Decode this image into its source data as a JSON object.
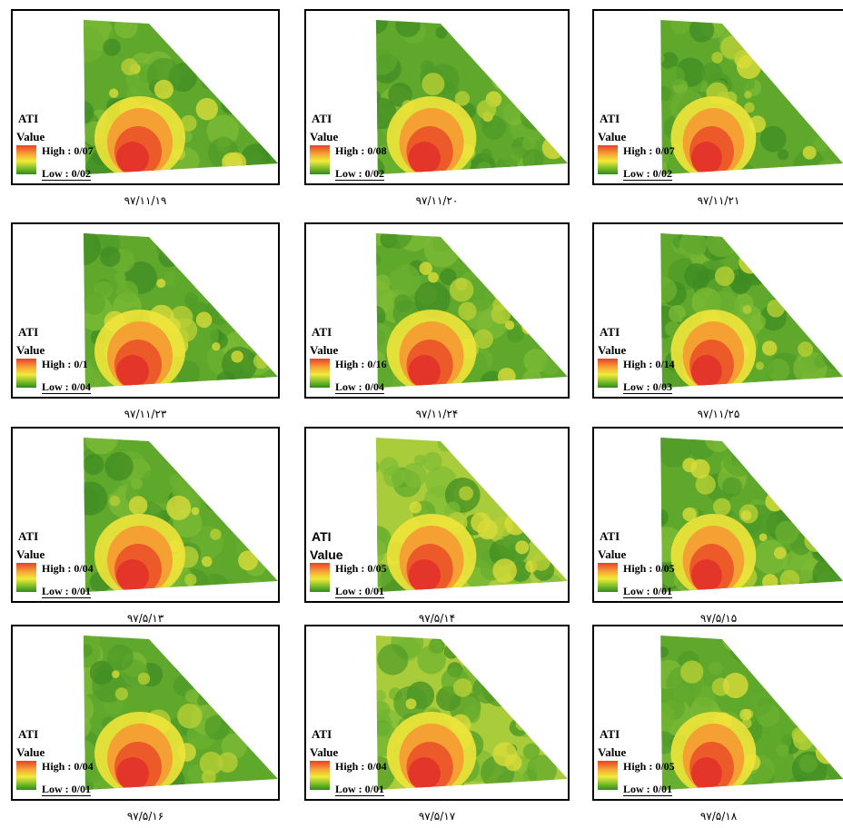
{
  "legend": {
    "title": "ATI",
    "subtitle": "Value"
  },
  "colors": {
    "low": "#2f8a1e",
    "mid": "#f0ec3a",
    "high": "#e8402a"
  },
  "panels": [
    {
      "date": "۹۷/۱۱/۱۹",
      "high": "High : 0/07",
      "low": "Low : 0/02"
    },
    {
      "date": "۹۷/۱۱/۲۰",
      "high": "High : 0/08",
      "low": "Low : 0/02"
    },
    {
      "date": "۹۷/۱۱/۲۱",
      "high": "High : 0/07",
      "low": "Low : 0/02"
    },
    {
      "date": "۹۷/۱۱/۲۳",
      "high": "High : 0/1",
      "low": "Low : 0/04"
    },
    {
      "date": "۹۷/۱۱/۲۴",
      "high": "High : 0/16",
      "low": "Low : 0/04"
    },
    {
      "date": "۹۷/۱۱/۲۵",
      "high": "High : 0/14",
      "low": "Low : 0/03"
    },
    {
      "date": "۹۷/۵/۱۳",
      "high": "High : 0/04",
      "low": "Low : 0/01"
    },
    {
      "date": "۹۷/۵/۱۴",
      "high": "High : 0/05",
      "low": "Low : 0/01"
    },
    {
      "date": "۹۷/۵/۱۵",
      "high": "High : 0/05",
      "low": "Low : 0/01"
    },
    {
      "date": "۹۷/۵/۱۶",
      "high": "High : 0/04",
      "low": "Low : 0/01"
    },
    {
      "date": "۹۷/۵/۱۷",
      "high": "High : 0/04",
      "low": "Low : 0/01"
    },
    {
      "date": "۹۷/۵/۱۸",
      "high": "High : 0/05",
      "low": "Low : 0/01"
    }
  ]
}
